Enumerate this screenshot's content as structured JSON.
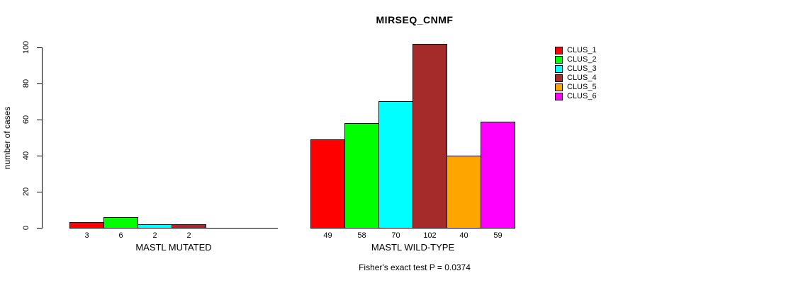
{
  "chart_data": {
    "type": "bar",
    "title": "MIRSEQ_CNMF",
    "ylabel": "number of cases",
    "xlabel": "",
    "ylim": [
      0,
      100
    ],
    "yticks": [
      0,
      20,
      40,
      60,
      80,
      100
    ],
    "grid": false,
    "legend_position": "right",
    "bar_value_labels": true,
    "categories": [
      "MASTL MUTATED",
      "MASTL WILD-TYPE"
    ],
    "series": [
      {
        "name": "CLUS_1",
        "color": "#FF0000",
        "values": [
          3,
          49
        ]
      },
      {
        "name": "CLUS_2",
        "color": "#00FF00",
        "values": [
          6,
          58
        ]
      },
      {
        "name": "CLUS_3",
        "color": "#00FFFF",
        "values": [
          2,
          70
        ]
      },
      {
        "name": "CLUS_4",
        "color": "#A52A2A",
        "values": [
          2,
          102
        ]
      },
      {
        "name": "CLUS_5",
        "color": "#FFA500",
        "values": [
          null,
          40
        ]
      },
      {
        "name": "CLUS_6",
        "color": "#FF00FF",
        "values": [
          null,
          59
        ]
      }
    ],
    "footnote": "Fisher's exact test P = 0.0374",
    "axis_color": "#000000",
    "text_color": "#000000",
    "background_color": "#FFFFFF"
  }
}
